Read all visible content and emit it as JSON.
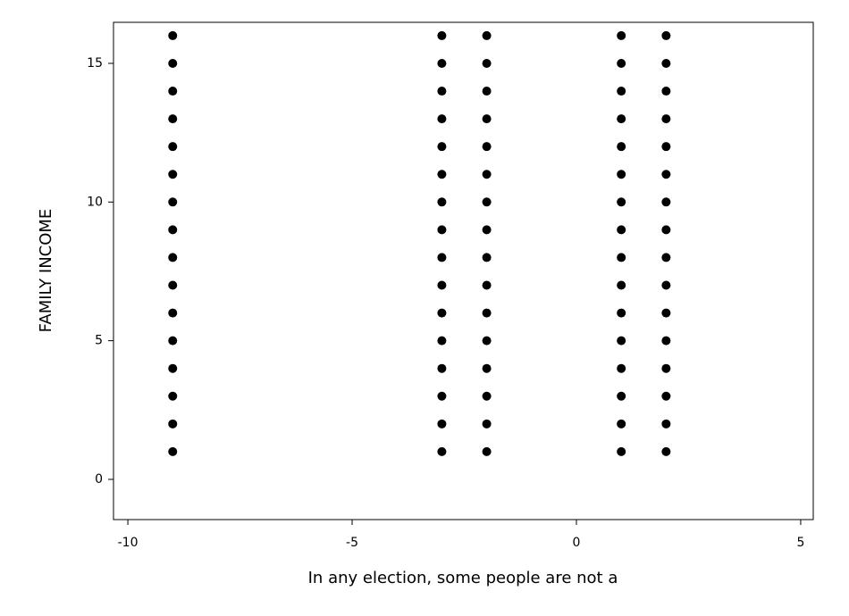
{
  "chart_data": {
    "type": "scatter",
    "xlabel": "In any election, some people are not a",
    "ylabel": "FAMILY INCOME",
    "color": "#000000",
    "x": [
      -9,
      -9,
      -9,
      -9,
      -9,
      -9,
      -9,
      -9,
      -9,
      -9,
      -9,
      -9,
      -9,
      -9,
      -9,
      -9,
      -3,
      -3,
      -3,
      -3,
      -3,
      -3,
      -3,
      -3,
      -3,
      -3,
      -3,
      -3,
      -3,
      -3,
      -3,
      -3,
      -2,
      -2,
      -2,
      -2,
      -2,
      -2,
      -2,
      -2,
      -2,
      -2,
      -2,
      -2,
      -2,
      -2,
      -2,
      -2,
      1,
      1,
      1,
      1,
      1,
      1,
      1,
      1,
      1,
      1,
      1,
      1,
      1,
      1,
      1,
      1,
      2,
      2,
      2,
      2,
      2,
      2,
      2,
      2,
      2,
      2,
      2,
      2,
      2,
      2,
      2,
      2
    ],
    "y": [
      1,
      2,
      3,
      4,
      5,
      6,
      7,
      8,
      9,
      10,
      11,
      12,
      13,
      14,
      15,
      16,
      1,
      2,
      3,
      4,
      5,
      6,
      7,
      8,
      9,
      10,
      11,
      12,
      13,
      14,
      15,
      16,
      1,
      2,
      3,
      4,
      5,
      6,
      7,
      8,
      9,
      10,
      11,
      12,
      13,
      14,
      15,
      16,
      1,
      2,
      3,
      4,
      5,
      6,
      7,
      8,
      9,
      10,
      11,
      12,
      13,
      14,
      15,
      16,
      1,
      2,
      3,
      4,
      5,
      6,
      7,
      8,
      9,
      10,
      11,
      12,
      13,
      14,
      15,
      16
    ],
    "xlim": [
      -10.32,
      5.28
    ],
    "xticks": [
      -10,
      -5,
      0,
      5
    ],
    "ylim": [
      -1.45,
      16.48
    ],
    "yticks": [
      0,
      5,
      10,
      15
    ],
    "grid": false
  }
}
